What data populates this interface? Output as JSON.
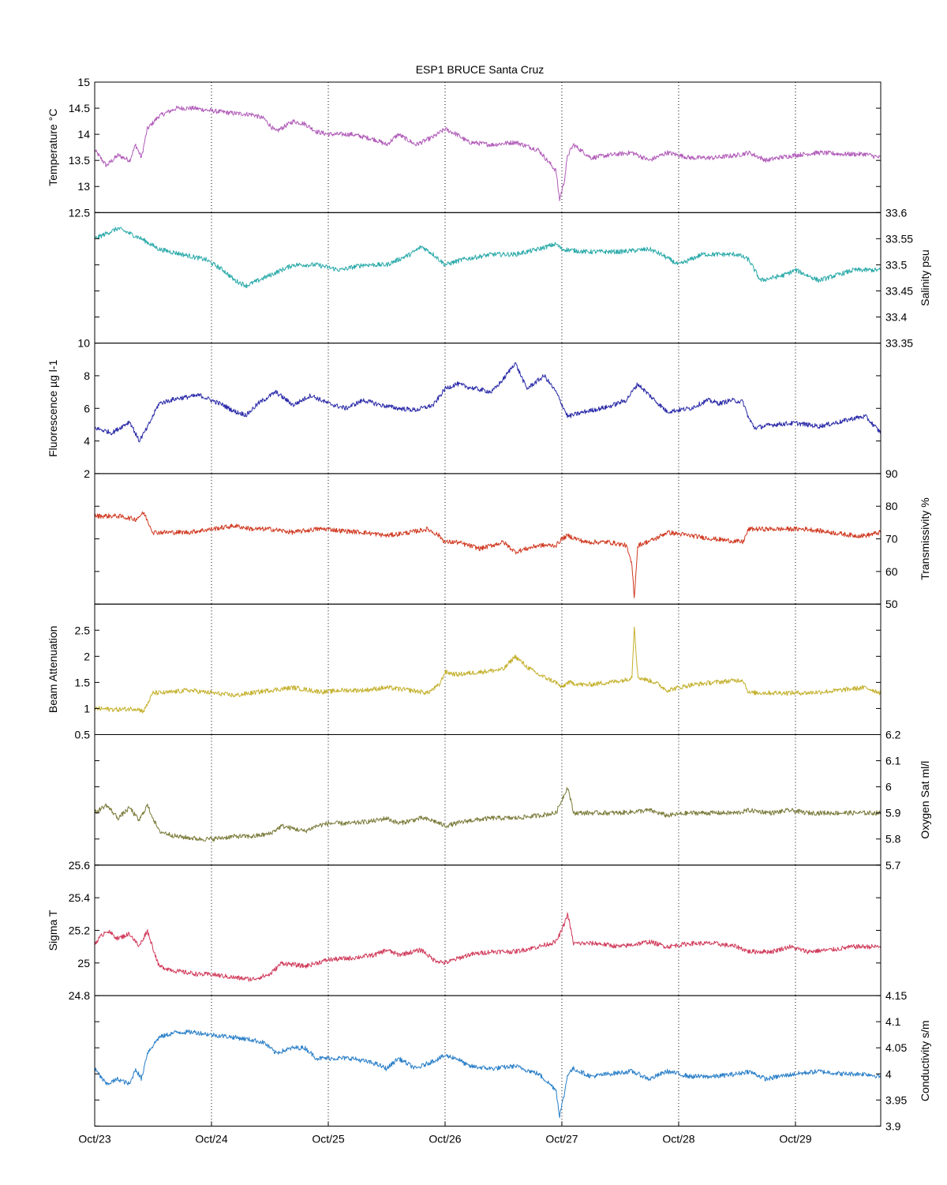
{
  "figure": {
    "title": "ESP1 BRUCE Santa Cruz",
    "x_tick_labels": [
      "Oct/23",
      "Oct/24",
      "Oct/25",
      "Oct/26",
      "Oct/27",
      "Oct/28",
      "Oct/29"
    ],
    "x_range_days": [
      0,
      6.73
    ],
    "vertical_grid": "dotted at each day"
  },
  "chart_data": [
    {
      "type": "line",
      "panel": "temperature",
      "ylabel": "Temperature °C",
      "axis_side": "left",
      "ylim": [
        12.5,
        15
      ],
      "yticks": [
        13,
        13.5,
        14,
        14.5,
        15
      ],
      "ytick_labels": [
        "13",
        "13.5",
        "14",
        "14.5",
        "15"
      ],
      "bottom_label": "12.5",
      "color": "#b05ab8",
      "x": [
        0,
        0.1,
        0.2,
        0.3,
        0.35,
        0.4,
        0.45,
        0.55,
        0.7,
        0.85,
        1.0,
        1.2,
        1.35,
        1.45,
        1.55,
        1.7,
        1.8,
        1.9,
        2.0,
        2.2,
        2.4,
        2.5,
        2.6,
        2.75,
        2.9,
        3.0,
        3.1,
        3.2,
        3.4,
        3.6,
        3.8,
        3.95,
        3.98,
        4.02,
        4.05,
        4.1,
        4.25,
        4.4,
        4.6,
        4.75,
        4.9,
        5.1,
        5.3,
        5.5,
        5.6,
        5.75,
        5.85,
        6.0,
        6.2,
        6.4,
        6.6,
        6.73
      ],
      "values": [
        13.7,
        13.4,
        13.6,
        13.5,
        13.8,
        13.55,
        14.1,
        14.35,
        14.5,
        14.5,
        14.45,
        14.4,
        14.38,
        14.3,
        14.05,
        14.25,
        14.2,
        14.05,
        14.0,
        14.0,
        13.9,
        13.8,
        14.0,
        13.8,
        13.95,
        14.1,
        14.0,
        13.85,
        13.8,
        13.85,
        13.7,
        13.3,
        12.75,
        13.1,
        13.6,
        13.8,
        13.55,
        13.6,
        13.65,
        13.5,
        13.65,
        13.55,
        13.55,
        13.6,
        13.65,
        13.5,
        13.55,
        13.6,
        13.65,
        13.62,
        13.62,
        13.55
      ]
    },
    {
      "type": "line",
      "panel": "salinity",
      "ylabel": "Salinity psu",
      "axis_side": "right",
      "ylim": [
        33.35,
        33.6
      ],
      "yticks": [
        33.4,
        33.45,
        33.5,
        33.55,
        33.6
      ],
      "ytick_labels": [
        "33.4",
        "33.45",
        "33.5",
        "33.55",
        "33.6"
      ],
      "bottom_label": "33.35",
      "color": "#2aa9a9",
      "x": [
        0,
        0.2,
        0.4,
        0.55,
        0.75,
        0.95,
        1.1,
        1.2,
        1.3,
        1.5,
        1.7,
        1.9,
        2.1,
        2.3,
        2.5,
        2.7,
        2.8,
        2.9,
        3.0,
        3.15,
        3.4,
        3.6,
        3.8,
        3.95,
        4.0,
        4.2,
        4.5,
        4.75,
        4.85,
        5.0,
        5.2,
        5.5,
        5.6,
        5.7,
        5.9,
        6.0,
        6.2,
        6.5,
        6.73
      ],
      "values": [
        33.55,
        33.57,
        33.55,
        33.53,
        33.52,
        33.51,
        33.49,
        33.47,
        33.46,
        33.48,
        33.5,
        33.5,
        33.49,
        33.5,
        33.5,
        33.52,
        33.535,
        33.52,
        33.5,
        33.51,
        33.52,
        33.52,
        33.53,
        33.54,
        33.53,
        33.525,
        33.525,
        33.53,
        33.52,
        33.5,
        33.52,
        33.52,
        33.51,
        33.47,
        33.48,
        33.49,
        33.47,
        33.49,
        33.49
      ]
    },
    {
      "type": "line",
      "panel": "fluorescence",
      "ylabel": "Fluorescence µg l-1",
      "axis_side": "left",
      "ylim": [
        2,
        10
      ],
      "yticks": [
        4,
        6,
        8,
        10
      ],
      "ytick_labels": [
        "4",
        "6",
        "8",
        "10"
      ],
      "bottom_label": "2",
      "color": "#2a2aa8",
      "x": [
        0,
        0.15,
        0.3,
        0.38,
        0.45,
        0.55,
        0.7,
        0.9,
        1.0,
        1.1,
        1.2,
        1.3,
        1.4,
        1.55,
        1.7,
        1.85,
        2.0,
        2.15,
        2.3,
        2.45,
        2.6,
        2.75,
        2.9,
        3.0,
        3.1,
        3.2,
        3.4,
        3.5,
        3.6,
        3.7,
        3.85,
        3.95,
        4.05,
        4.2,
        4.4,
        4.55,
        4.65,
        4.75,
        4.9,
        5.1,
        5.25,
        5.35,
        5.45,
        5.55,
        5.6,
        5.65,
        5.8,
        6.0,
        6.2,
        6.4,
        6.5,
        6.6,
        6.73
      ],
      "values": [
        4.8,
        4.5,
        5.2,
        4.0,
        4.8,
        6.3,
        6.6,
        6.8,
        6.5,
        6.2,
        5.8,
        5.6,
        6.3,
        7.0,
        6.2,
        6.8,
        6.3,
        6.0,
        6.5,
        6.2,
        6.0,
        5.9,
        6.2,
        7.2,
        7.5,
        7.3,
        7.0,
        7.8,
        8.8,
        7.2,
        8.0,
        7.0,
        5.5,
        5.8,
        6.1,
        6.5,
        7.5,
        6.8,
        5.8,
        6.0,
        6.5,
        6.3,
        6.5,
        6.4,
        5.4,
        4.8,
        5.0,
        5.1,
        4.9,
        5.2,
        5.4,
        5.5,
        4.5
      ]
    },
    {
      "type": "line",
      "panel": "transmissivity",
      "ylabel": "Transmissivity %",
      "axis_side": "right",
      "ylim": [
        50,
        90
      ],
      "yticks": [
        50,
        60,
        70,
        80,
        90
      ],
      "ytick_labels": [
        "50",
        "60",
        "70",
        "80",
        "90"
      ],
      "bottom_label": "50",
      "color": "#d03a22",
      "x": [
        0,
        0.2,
        0.35,
        0.42,
        0.5,
        0.6,
        0.8,
        1.0,
        1.2,
        1.35,
        1.5,
        1.7,
        1.9,
        2.0,
        2.1,
        2.3,
        2.5,
        2.7,
        2.85,
        2.95,
        3.0,
        3.1,
        3.3,
        3.5,
        3.6,
        3.7,
        3.8,
        3.95,
        4.0,
        4.05,
        4.2,
        4.4,
        4.55,
        4.6,
        4.62,
        4.65,
        4.8,
        4.9,
        5.1,
        5.3,
        5.55,
        5.6,
        5.7,
        5.9,
        6.1,
        6.3,
        6.5,
        6.6,
        6.73
      ],
      "values": [
        77,
        77,
        76,
        78,
        72,
        72,
        72,
        73,
        74,
        73,
        73,
        72,
        73,
        73,
        72.5,
        72,
        71,
        72,
        73,
        71,
        69,
        69,
        67,
        69,
        66,
        67,
        68,
        68,
        70,
        71,
        69,
        69,
        68,
        62,
        52,
        68,
        70,
        72,
        71,
        70,
        69,
        73,
        73,
        73,
        73,
        72,
        71,
        71,
        72
      ]
    },
    {
      "type": "line",
      "panel": "beam_attenuation",
      "ylabel": "Beam Attenuation",
      "axis_side": "left",
      "ylim": [
        0.5,
        3
      ],
      "yticks": [
        1,
        1.5,
        2,
        2.5
      ],
      "ytick_labels": [
        "1",
        "1.5",
        "2",
        "2.5"
      ],
      "bottom_label": "0.5",
      "color": "#c4b02c",
      "x": [
        0,
        0.2,
        0.35,
        0.42,
        0.5,
        0.6,
        0.8,
        1.0,
        1.2,
        1.35,
        1.5,
        1.7,
        1.9,
        2.0,
        2.1,
        2.3,
        2.5,
        2.7,
        2.85,
        2.95,
        3.0,
        3.1,
        3.3,
        3.5,
        3.6,
        3.7,
        3.8,
        3.95,
        4.0,
        4.05,
        4.2,
        4.4,
        4.55,
        4.6,
        4.62,
        4.65,
        4.8,
        4.9,
        5.1,
        5.3,
        5.55,
        5.6,
        5.7,
        5.9,
        6.1,
        6.3,
        6.5,
        6.6,
        6.73
      ],
      "values": [
        1.0,
        0.98,
        1.0,
        0.95,
        1.3,
        1.3,
        1.35,
        1.3,
        1.25,
        1.3,
        1.35,
        1.4,
        1.33,
        1.32,
        1.35,
        1.35,
        1.4,
        1.35,
        1.3,
        1.45,
        1.7,
        1.65,
        1.7,
        1.75,
        2.0,
        1.8,
        1.65,
        1.5,
        1.4,
        1.5,
        1.45,
        1.5,
        1.55,
        1.6,
        2.6,
        1.6,
        1.5,
        1.35,
        1.45,
        1.5,
        1.55,
        1.3,
        1.3,
        1.3,
        1.3,
        1.33,
        1.38,
        1.4,
        1.3
      ]
    },
    {
      "type": "line",
      "panel": "oxygen",
      "ylabel": "Oxygen Sat ml/l",
      "axis_side": "right",
      "ylim": [
        5.7,
        6.2
      ],
      "yticks": [
        5.7,
        5.8,
        5.9,
        6,
        6.1,
        6.2
      ],
      "ytick_labels": [
        "5.7",
        "5.8",
        "5.9",
        "6",
        "6.1",
        "6.2"
      ],
      "bottom_label": "5.7",
      "color": "#7a7a3a",
      "x": [
        0,
        0.1,
        0.2,
        0.3,
        0.38,
        0.45,
        0.55,
        0.7,
        0.9,
        1.0,
        1.2,
        1.35,
        1.5,
        1.6,
        1.8,
        1.9,
        2.0,
        2.2,
        2.4,
        2.5,
        2.6,
        2.8,
        2.9,
        3.0,
        3.2,
        3.4,
        3.6,
        3.8,
        3.95,
        4.0,
        4.05,
        4.1,
        4.3,
        4.5,
        4.75,
        4.9,
        5.1,
        5.3,
        5.5,
        5.6,
        5.8,
        5.95,
        6.1,
        6.3,
        6.5,
        6.73
      ],
      "values": [
        5.9,
        5.93,
        5.88,
        5.92,
        5.87,
        5.93,
        5.83,
        5.81,
        5.8,
        5.8,
        5.81,
        5.81,
        5.82,
        5.85,
        5.83,
        5.85,
        5.86,
        5.86,
        5.87,
        5.88,
        5.86,
        5.88,
        5.87,
        5.85,
        5.87,
        5.88,
        5.88,
        5.89,
        5.9,
        5.95,
        6.0,
        5.9,
        5.9,
        5.9,
        5.91,
        5.89,
        5.9,
        5.9,
        5.9,
        5.91,
        5.9,
        5.91,
        5.9,
        5.9,
        5.9,
        5.9
      ]
    },
    {
      "type": "line",
      "panel": "sigma_t",
      "ylabel": "Sigma T",
      "axis_side": "left",
      "ylim": [
        24.8,
        25.6
      ],
      "yticks": [
        25,
        25.2,
        25.4,
        25.6
      ],
      "ytick_labels": [
        "25",
        "25.2",
        "25.4",
        "25.6"
      ],
      "bottom_label": "24.8",
      "color": "#d03a5a",
      "x": [
        0,
        0.1,
        0.2,
        0.3,
        0.38,
        0.45,
        0.55,
        0.7,
        0.9,
        1.0,
        1.2,
        1.35,
        1.5,
        1.6,
        1.8,
        1.9,
        2.0,
        2.2,
        2.4,
        2.5,
        2.6,
        2.8,
        2.9,
        3.0,
        3.2,
        3.4,
        3.6,
        3.8,
        3.95,
        4.0,
        4.05,
        4.1,
        4.3,
        4.5,
        4.75,
        4.9,
        5.1,
        5.3,
        5.5,
        5.6,
        5.8,
        5.95,
        6.1,
        6.3,
        6.5,
        6.73
      ],
      "values": [
        25.12,
        25.2,
        25.15,
        25.18,
        25.1,
        25.2,
        24.98,
        24.95,
        24.93,
        24.93,
        24.91,
        24.9,
        24.93,
        25.0,
        24.98,
        25.0,
        25.02,
        25.03,
        25.05,
        25.08,
        25.05,
        25.08,
        25.02,
        25.0,
        25.05,
        25.07,
        25.07,
        25.1,
        25.13,
        25.2,
        25.3,
        25.12,
        25.12,
        25.1,
        25.13,
        25.1,
        25.12,
        25.12,
        25.1,
        25.07,
        25.07,
        25.1,
        25.07,
        25.08,
        25.1,
        25.1
      ]
    },
    {
      "type": "line",
      "panel": "conductivity",
      "ylabel": "Conductivity s/m",
      "axis_side": "right",
      "ylim": [
        3.9,
        4.15
      ],
      "yticks": [
        3.9,
        3.95,
        4,
        4.05,
        4.1,
        4.15
      ],
      "ytick_labels": [
        "3.9",
        "3.95",
        "4",
        "4.05",
        "4.1",
        "4.15"
      ],
      "bottom_label": "3.9",
      "color": "#2a7fc8",
      "x": [
        0,
        0.1,
        0.2,
        0.3,
        0.35,
        0.4,
        0.45,
        0.55,
        0.7,
        0.85,
        1.0,
        1.2,
        1.35,
        1.45,
        1.55,
        1.7,
        1.8,
        1.9,
        2.0,
        2.2,
        2.4,
        2.5,
        2.6,
        2.75,
        2.9,
        3.0,
        3.1,
        3.2,
        3.4,
        3.6,
        3.8,
        3.95,
        3.98,
        4.02,
        4.05,
        4.1,
        4.25,
        4.4,
        4.6,
        4.75,
        4.9,
        5.1,
        5.3,
        5.5,
        5.6,
        5.75,
        5.85,
        6.0,
        6.2,
        6.4,
        6.6,
        6.73
      ],
      "values": [
        4.01,
        3.98,
        3.99,
        3.98,
        4.01,
        3.99,
        4.04,
        4.07,
        4.08,
        4.08,
        4.075,
        4.07,
        4.065,
        4.06,
        4.04,
        4.05,
        4.05,
        4.03,
        4.03,
        4.03,
        4.02,
        4.01,
        4.03,
        4.01,
        4.025,
        4.035,
        4.03,
        4.015,
        4.01,
        4.015,
        4.0,
        3.97,
        3.92,
        3.96,
        4.0,
        4.01,
        3.995,
        4.0,
        4.005,
        3.99,
        4.005,
        3.995,
        3.995,
        4.0,
        4.005,
        3.99,
        3.995,
        4.0,
        4.005,
        4.0,
        4.0,
        3.995
      ]
    }
  ]
}
